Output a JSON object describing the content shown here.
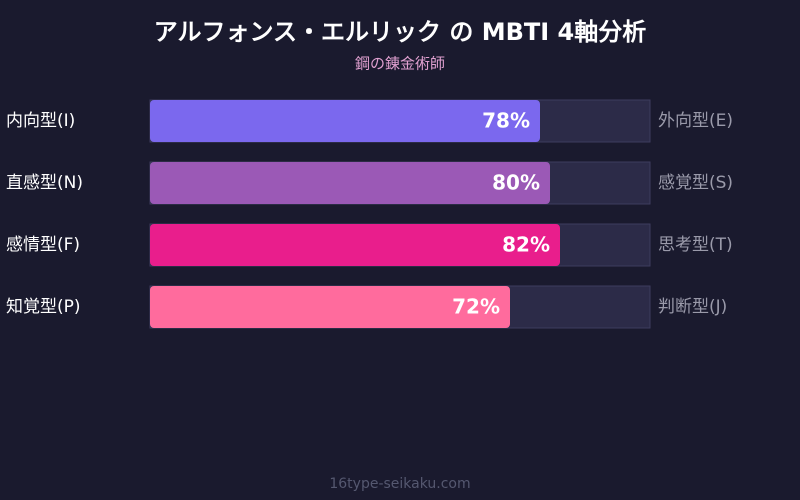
{
  "chart_data": {
    "type": "bar",
    "orientation": "horizontal",
    "title": "アルフォンス・エルリック の MBTI 4軸分析",
    "subtitle": "鋼の錬金術師",
    "categories": [
      "内向型(I)",
      "直感型(N)",
      "感情型(F)",
      "知覚型(P)"
    ],
    "opposite_labels": [
      "外向型(E)",
      "感覚型(S)",
      "思考型(T)",
      "判断型(J)"
    ],
    "values": [
      78,
      80,
      82,
      72
    ],
    "value_labels": [
      "78%",
      "80%",
      "82%",
      "72%"
    ],
    "colors": [
      "#7b68ee",
      "#9b59b6",
      "#e91e8c",
      "#ff6b9d"
    ],
    "xlim": [
      0,
      100
    ],
    "footer": "16type-seikaku.com"
  }
}
